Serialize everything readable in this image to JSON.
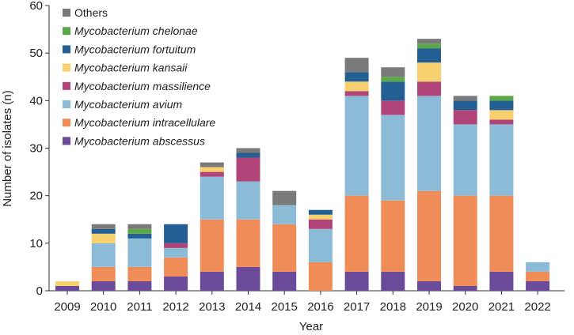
{
  "chart_data": {
    "type": "bar",
    "stacked": true,
    "title": "",
    "xlabel": "Year",
    "ylabel": "Number of isolates (n)",
    "ylim": [
      0,
      60
    ],
    "yticks": [
      0,
      10,
      20,
      30,
      40,
      50,
      60
    ],
    "grid": false,
    "legend_position": "top-left",
    "categories": [
      "2009",
      "2010",
      "2011",
      "2012",
      "2013",
      "2014",
      "2015",
      "2016",
      "2017",
      "2018",
      "2019",
      "2020",
      "2021",
      "2022"
    ],
    "series": [
      {
        "name": "Mycobacterium abscessus",
        "italic": true,
        "color": "#6c4a9a",
        "values": [
          1,
          2,
          2,
          3,
          4,
          5,
          4,
          0,
          4,
          4,
          2,
          1,
          4,
          2
        ]
      },
      {
        "name": "Mycobacterium intracellulare",
        "italic": true,
        "color": "#ef8c57",
        "values": [
          0,
          3,
          3,
          4,
          11,
          10,
          10,
          6,
          16,
          15,
          19,
          19,
          16,
          2
        ]
      },
      {
        "name": "Mycobacterium avium",
        "italic": true,
        "color": "#8bbbd6",
        "values": [
          0,
          5,
          6,
          2,
          9,
          8,
          4,
          7,
          21,
          18,
          20,
          15,
          15,
          2
        ]
      },
      {
        "name": "Mycobacterium massilience",
        "italic": true,
        "color": "#b04478",
        "values": [
          0,
          0,
          0,
          1,
          1,
          5,
          0,
          2,
          1,
          3,
          3,
          3,
          1,
          0
        ]
      },
      {
        "name": "Mycobacterium kansaii",
        "italic": true,
        "color": "#f7d070",
        "values": [
          1,
          2,
          0,
          0,
          1,
          0,
          0,
          1,
          2,
          0,
          4,
          0,
          2,
          0
        ]
      },
      {
        "name": "Mycobacterium fortuitum",
        "italic": true,
        "color": "#245f94",
        "values": [
          0,
          1,
          1,
          4,
          0,
          1,
          0,
          1,
          2,
          4,
          3,
          2,
          2,
          0
        ]
      },
      {
        "name": "Mycobacterium chelonae",
        "italic": true,
        "color": "#5aa847",
        "values": [
          0,
          0,
          1,
          0,
          0,
          0,
          0,
          0,
          0,
          1,
          1,
          0,
          1,
          0
        ]
      },
      {
        "name": "Others",
        "italic": false,
        "color": "#7a7a7a",
        "values": [
          0,
          1,
          1,
          0,
          1,
          1,
          3,
          0,
          3,
          2,
          1,
          1,
          0,
          0
        ]
      }
    ]
  }
}
